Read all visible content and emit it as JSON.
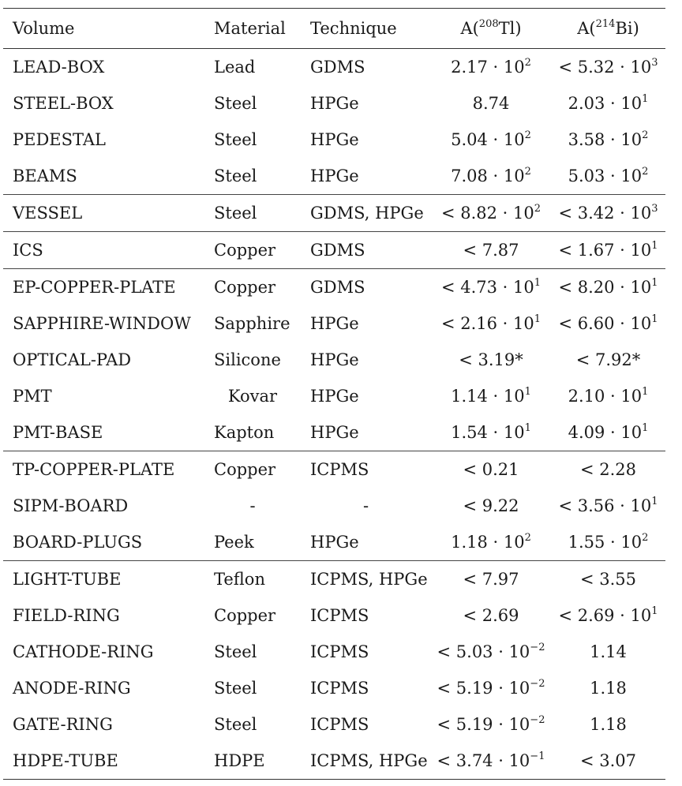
{
  "headers": [
    "Volume",
    "Material",
    "Technique",
    "A(208Tl)",
    "A(214Bi)"
  ],
  "header_isotopes": {
    "tl": {
      "prefix": "A(",
      "mass": "208",
      "element": "Tl",
      "suffix": ")"
    },
    "bi": {
      "prefix": "A(",
      "mass": "214",
      "element": "Bi",
      "suffix": ")"
    }
  },
  "groups": [
    [
      {
        "volume": "LEAD-BOX",
        "material": "Lead",
        "technique": "GDMS",
        "tl": "2.17 · 10^2",
        "bi": "< 5.32 · 10^3"
      },
      {
        "volume": "STEEL-BOX",
        "material": "Steel",
        "technique": "HPGe",
        "tl": "8.74",
        "bi": "2.03 · 10^1"
      },
      {
        "volume": "PEDESTAL",
        "material": "Steel",
        "technique": "HPGe",
        "tl": "5.04 · 10^2",
        "bi": "3.58 · 10^2"
      },
      {
        "volume": "BEAMS",
        "material": "Steel",
        "technique": "HPGe",
        "tl": "7.08 · 10^2",
        "bi": "5.03 · 10^2"
      }
    ],
    [
      {
        "volume": "VESSEL",
        "material": "Steel",
        "technique": "GDMS, HPGe",
        "tl": "< 8.82 · 10^2",
        "bi": "< 3.42 · 10^3"
      }
    ],
    [
      {
        "volume": "ICS",
        "material": "Copper",
        "technique": "GDMS",
        "tl": "< 7.87",
        "bi": "< 1.67 · 10^1"
      }
    ],
    [
      {
        "volume": "EP-COPPER-PLATE",
        "material": "Copper",
        "technique": "GDMS",
        "tl": "< 4.73 · 10^1",
        "bi": "< 8.20 · 10^1"
      },
      {
        "volume": "SAPPHIRE-WINDOW",
        "material": "Sapphire",
        "technique": "HPGe",
        "tl": "< 2.16 · 10^1",
        "bi": "< 6.60 · 10^1"
      },
      {
        "volume": "OPTICAL-PAD",
        "material": "Silicone",
        "technique": "HPGe",
        "tl": "< 3.19*",
        "bi": "< 7.92*"
      },
      {
        "volume": "PMT",
        "material": "Kovar",
        "technique": "HPGe",
        "tl": "1.14 · 10^1",
        "bi": "2.10 · 10^1",
        "material_centered": true
      },
      {
        "volume": "PMT-BASE",
        "material": "Kapton",
        "technique": "HPGe",
        "tl": "1.54 · 10^1",
        "bi": "4.09 · 10^1"
      }
    ],
    [
      {
        "volume": "TP-COPPER-PLATE",
        "material": "Copper",
        "technique": "ICPMS",
        "tl": "< 0.21",
        "bi": "< 2.28"
      },
      {
        "volume": "SIPM-BOARD",
        "material": "-",
        "technique": "-",
        "tl": "< 9.22",
        "bi": "< 3.56 · 10^1",
        "material_centered": true,
        "technique_centered": true
      },
      {
        "volume": "BOARD-PLUGS",
        "material": "Peek",
        "technique": "HPGe",
        "tl": "1.18 · 10^2",
        "bi": "1.55 · 10^2"
      }
    ],
    [
      {
        "volume": "LIGHT-TUBE",
        "material": "Teflon",
        "technique": "ICPMS, HPGe",
        "tl": "< 7.97",
        "bi": "< 3.55"
      },
      {
        "volume": "FIELD-RING",
        "material": "Copper",
        "technique": "ICPMS",
        "tl": "< 2.69",
        "bi": "< 2.69 · 10^1"
      },
      {
        "volume": "CATHODE-RING",
        "material": "Steel",
        "technique": "ICPMS",
        "tl": "< 5.03 · 10^−2",
        "bi": "1.14"
      },
      {
        "volume": "ANODE-RING",
        "material": "Steel",
        "technique": "ICPMS",
        "tl": "< 5.19 · 10^−2",
        "bi": "1.18"
      },
      {
        "volume": "GATE-RING",
        "material": "Steel",
        "technique": "ICPMS",
        "tl": "< 5.19 · 10^−2",
        "bi": "1.18"
      },
      {
        "volume": "HDPE-TUBE",
        "material": "HDPE",
        "technique": "ICPMS, HPGe",
        "tl": "< 3.74 · 10^−1",
        "bi": "< 3.07"
      }
    ]
  ]
}
